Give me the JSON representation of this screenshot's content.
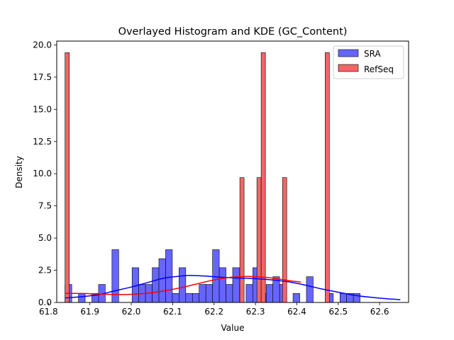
{
  "chart_data": {
    "type": "histogram",
    "title": "Overlayed Histogram and KDE (GC_Content)",
    "xlabel": "Value",
    "ylabel": "Density",
    "xlim": [
      61.82,
      62.67
    ],
    "ylim": [
      0,
      20.3
    ],
    "xticks": [
      61.8,
      61.9,
      62.0,
      62.1,
      62.2,
      62.3,
      62.4,
      62.5,
      62.6
    ],
    "xtick_labels": [
      "61.8",
      "61.9",
      "62.0",
      "62.1",
      "62.2",
      "62.3",
      "62.4",
      "62.5",
      "62.6"
    ],
    "yticks": [
      0,
      2.5,
      5,
      7.5,
      10,
      12.5,
      15,
      17.5,
      20
    ],
    "ytick_labels": [
      "0.0",
      "2.5",
      "5.0",
      "7.5",
      "10.0",
      "12.5",
      "15.0",
      "17.5",
      "20.0"
    ],
    "legend_position": "top-right",
    "grid": false,
    "series": [
      {
        "name": "SRA",
        "color": "#0000ff",
        "bar_fill": "#6666ff",
        "bin_start": 61.84,
        "bin_width": 0.0162,
        "values": [
          1.4,
          0,
          0.7,
          0,
          0.7,
          1.4,
          0,
          4.1,
          0,
          0,
          2.7,
          1.4,
          1.4,
          2.7,
          3.4,
          4.1,
          0.7,
          2.7,
          0.7,
          0.7,
          1.4,
          1.4,
          4.1,
          2.7,
          1.4,
          2.7,
          0,
          1.4,
          2.7,
          0.7,
          1.4,
          2.0,
          1.4,
          0,
          0.7,
          0,
          2.0,
          0,
          0,
          0.7,
          0,
          0.7,
          0.7,
          0.7
        ]
      },
      {
        "name": "RefSeq",
        "color": "#ff0000",
        "bar_fill": "#f26666",
        "bin_start": 61.84,
        "bin_width": 0.0103,
        "values": [
          19.4,
          0,
          0,
          0,
          0,
          0,
          0,
          0,
          0,
          0,
          0,
          0,
          0,
          0,
          0,
          0,
          0,
          0,
          0,
          0,
          0,
          0,
          0,
          0,
          0,
          0,
          0,
          0,
          0,
          0,
          0,
          0,
          0,
          0,
          0,
          0,
          0,
          0,
          0,
          0,
          0,
          9.7,
          0,
          0,
          0,
          9.7,
          19.4,
          0,
          0,
          0,
          0,
          9.7,
          0,
          0,
          0,
          0,
          0,
          0,
          0,
          0,
          0,
          19.4
        ]
      }
    ],
    "kde": [
      {
        "name": "SRA",
        "color": "#0000ff",
        "x": [
          61.84,
          61.88,
          61.92,
          61.96,
          62.0,
          62.04,
          62.08,
          62.12,
          62.14,
          62.18,
          62.22,
          62.26,
          62.3,
          62.34,
          62.38,
          62.42,
          62.46,
          62.5,
          62.54,
          62.58,
          62.62,
          62.65
        ],
        "y": [
          0.35,
          0.45,
          0.6,
          0.9,
          1.2,
          1.55,
          1.9,
          2.05,
          2.1,
          2.05,
          1.95,
          1.9,
          1.85,
          1.75,
          1.6,
          1.35,
          1.05,
          0.8,
          0.55,
          0.4,
          0.28,
          0.22
        ]
      },
      {
        "name": "RefSeq",
        "color": "#ff0000",
        "x": [
          61.84,
          61.88,
          61.92,
          61.96,
          62.0,
          62.04,
          62.08,
          62.12,
          62.16,
          62.2,
          62.24,
          62.28,
          62.3,
          62.34,
          62.38,
          62.41
        ],
        "y": [
          0.7,
          0.7,
          0.65,
          0.62,
          0.63,
          0.72,
          0.9,
          1.15,
          1.45,
          1.75,
          1.95,
          2.02,
          2.0,
          1.9,
          1.7,
          1.58
        ]
      }
    ]
  }
}
